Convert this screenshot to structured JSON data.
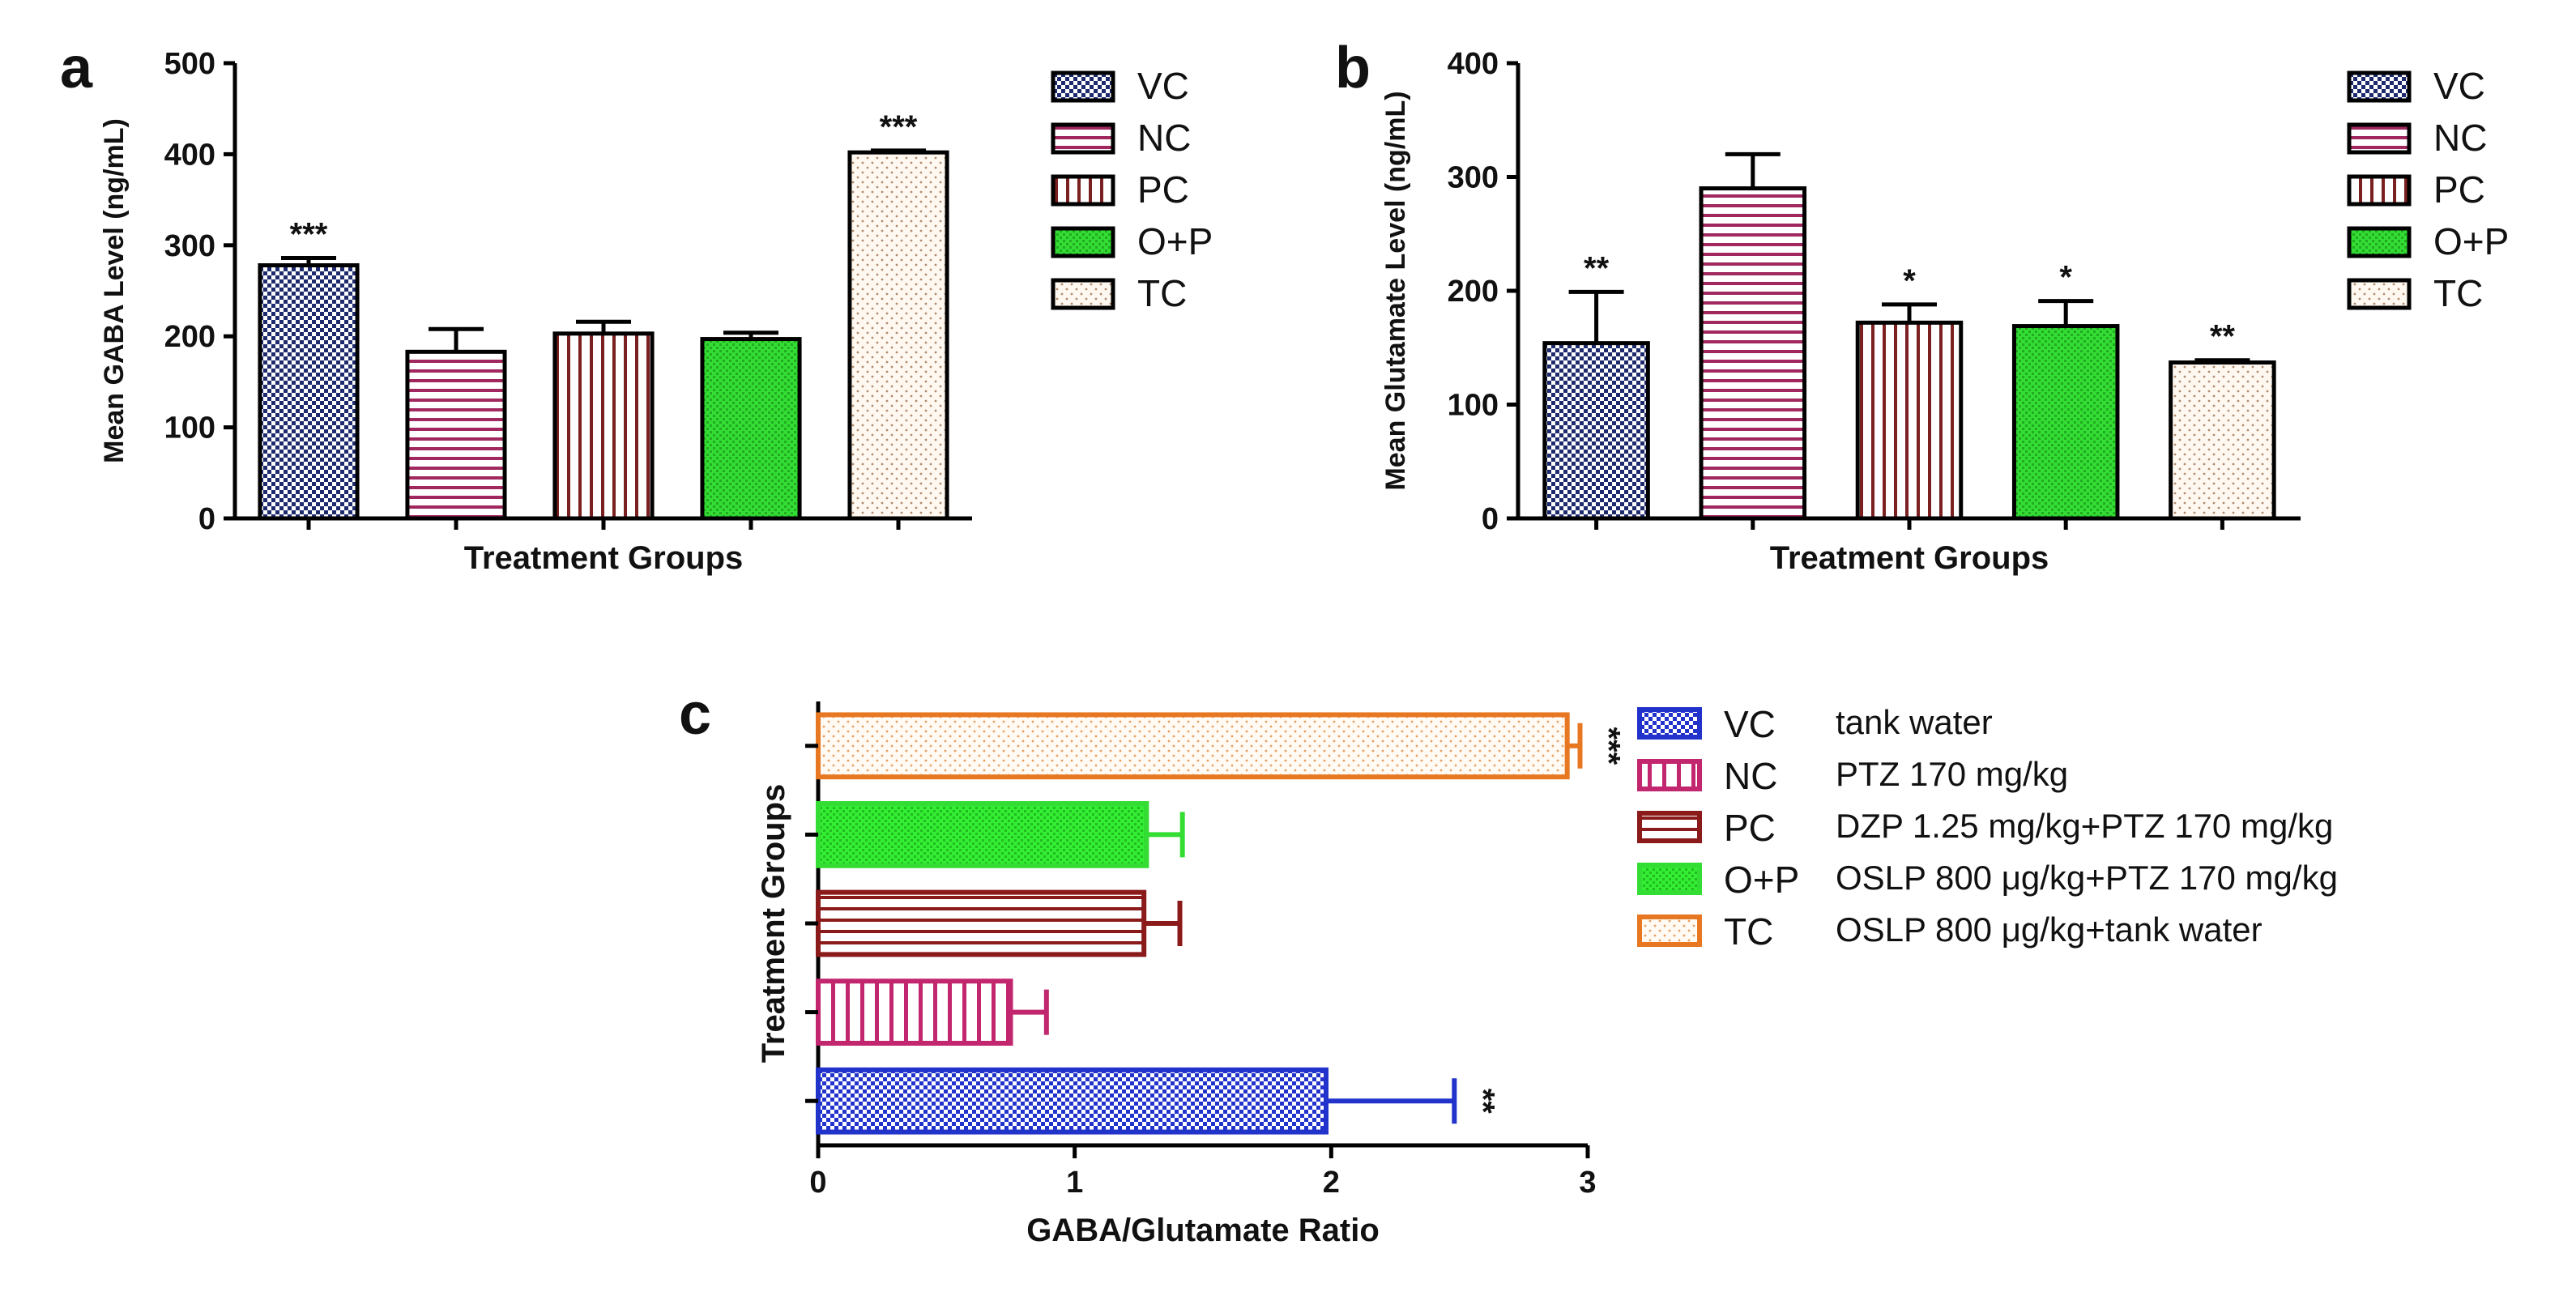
{
  "groups": [
    {
      "code": "VC",
      "color": "#2233cc",
      "desc": "tank water",
      "pattern": "check"
    },
    {
      "code": "NC",
      "color": "#c2266e",
      "desc": "PTZ 170 mg/kg",
      "pattern": "hline"
    },
    {
      "code": "PC",
      "color": "#8b1a1a",
      "desc": "DZP 1.25 mg/kg+PTZ 170 mg/kg",
      "pattern": "vline"
    },
    {
      "code": "O+P",
      "color": "#33dd33",
      "desc": "OSLP 800 μg/kg+PTZ 170 mg/kg",
      "pattern": "green"
    },
    {
      "code": "TC",
      "color": "#e87722",
      "desc": "OSLP 800 μg/kg+tank water",
      "pattern": "dots"
    }
  ],
  "chart_data": [
    {
      "panel": "a",
      "type": "bar",
      "xlabel": "Treatment Groups",
      "ylabel": "Mean GABA Level (ng/mL)",
      "ylim": [
        0,
        500
      ],
      "yticks": [
        "0",
        "100",
        "200",
        "300",
        "400",
        "500"
      ],
      "categories": [
        "VC",
        "NC",
        "PC",
        "O+P",
        "TC"
      ],
      "values": [
        278,
        183,
        203,
        197,
        402
      ],
      "errors": [
        8,
        25,
        13,
        7,
        2
      ],
      "significance": [
        "***",
        "",
        "",
        "",
        "***"
      ],
      "legend": [
        "VC",
        "NC",
        "PC",
        "O+P",
        "TC"
      ]
    },
    {
      "panel": "b",
      "type": "bar",
      "xlabel": "Treatment Groups",
      "ylabel": "Mean Glutamate Level (ng/mL)",
      "ylim": [
        0,
        400
      ],
      "yticks": [
        "0",
        "100",
        "200",
        "300",
        "400"
      ],
      "categories": [
        "VC",
        "NC",
        "PC",
        "O+P",
        "TC"
      ],
      "values": [
        154,
        290,
        172,
        169,
        137
      ],
      "errors": [
        45,
        30,
        16,
        22,
        2
      ],
      "significance": [
        "**",
        "",
        "*",
        "*",
        "**"
      ],
      "legend": [
        "VC",
        "NC",
        "PC",
        "O+P",
        "TC"
      ]
    },
    {
      "panel": "c",
      "type": "bar",
      "orientation": "horizontal",
      "xlabel": "GABA/Glutamate Ratio",
      "ylabel": "Treatment Groups",
      "xlim": [
        0,
        3
      ],
      "xticks": [
        "0",
        "1",
        "2",
        "3"
      ],
      "categories": [
        "VC",
        "NC",
        "PC",
        "O+P",
        "TC"
      ],
      "values": [
        1.98,
        0.75,
        1.27,
        1.28,
        2.92
      ],
      "errors": [
        0.5,
        0.14,
        0.14,
        0.14,
        0.05
      ],
      "significance": [
        "**",
        "",
        "",
        "",
        "***"
      ],
      "legend": [
        "VC",
        "NC",
        "PC",
        "O+P",
        "TC"
      ]
    }
  ]
}
